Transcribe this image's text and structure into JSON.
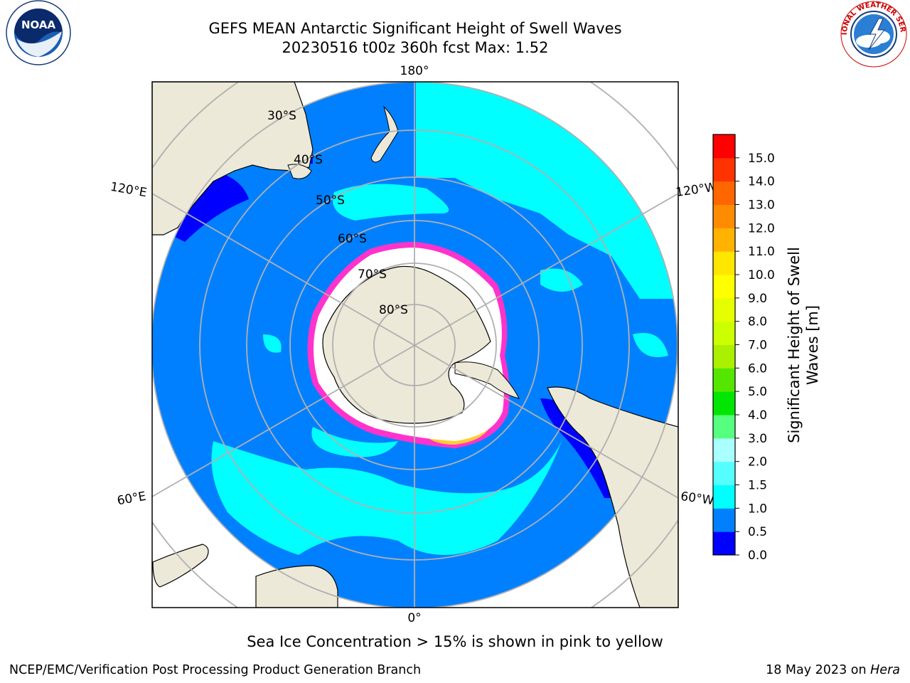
{
  "header": {
    "title_line1": "GEFS MEAN Antarctic Significant Height of Swell Waves",
    "title_line2": "20230516 t00z 360h fcst   Max: 1.52"
  },
  "logos": {
    "left": {
      "name": "noaa-logo",
      "text": "NOAA",
      "ring_text": "NATIONAL OCEANIC AND ATMOSPHERIC ADMINISTRATION · U.S. DEPARTMENT OF COMMERCE"
    },
    "right": {
      "name": "nws-logo",
      "ring_text": "NATIONAL WEATHER SERVICE"
    }
  },
  "map": {
    "projection": "south-polar-stereographic",
    "longitude_labels": {
      "top": "180°",
      "bottom": "0°",
      "upper_left": "120°E",
      "lower_left": "60°E",
      "upper_right": "120°W",
      "lower_right": "60°W"
    },
    "latitude_labels": [
      "30°S",
      "40°S",
      "50°S",
      "60°S",
      "70°S",
      "80°S"
    ],
    "colors": {
      "land": "#ece9d8",
      "ocean_low": "#0080ff",
      "ocean_mid": "#00ffff",
      "ocean_vlow": "#0000ff",
      "ice_edge_pink": "#ff33cc",
      "ice_yellow": "#ffcc33",
      "grid": "#b0b0b0"
    }
  },
  "colorbar": {
    "label": "Significant Height of Swell Waves [m]",
    "label_line1": "Significant Height of Swell",
    "label_line2": "Waves [m]",
    "ticks": [
      "15.0",
      "14.0",
      "13.0",
      "12.0",
      "11.0",
      "10.0",
      "9.0",
      "8.0",
      "7.0",
      "6.0",
      "5.0",
      "4.0",
      "3.0",
      "2.0",
      "1.5",
      "1.0",
      "0.5",
      "0.0"
    ],
    "colors_bottom_to_top": [
      "#0000ff",
      "#0080ff",
      "#00ffff",
      "#55ffff",
      "#aaffff",
      "#55ff80",
      "#00e600",
      "#55e600",
      "#aaf000",
      "#ccff00",
      "#e6ff00",
      "#ffff00",
      "#ffe600",
      "#ffb300",
      "#ff8c00",
      "#ff6600",
      "#ff3300",
      "#ff0000"
    ]
  },
  "footer": {
    "caption": "Sea Ice Concentration > 15% is shown in pink to yellow",
    "credit_left": "NCEP/EMC/Verification Post Processing Product Generation Branch",
    "credit_date": "18 May 2023 on ",
    "credit_host": "Hera"
  }
}
